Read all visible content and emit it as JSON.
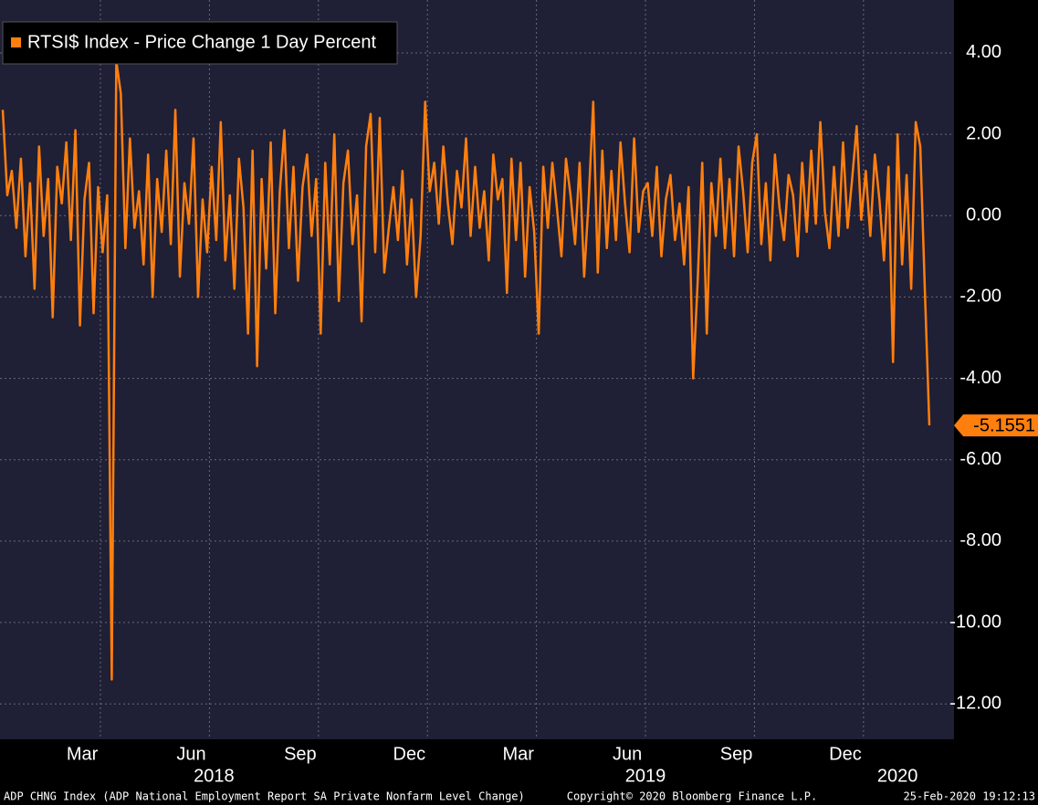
{
  "chart_data": {
    "type": "line",
    "series": [
      {
        "name": "RTSI$ Index - Price Change 1 Day Percent",
        "color": "#ff7f0e",
        "values": [
          2.6,
          0.5,
          1.1,
          -0.3,
          1.4,
          -1.0,
          0.8,
          -1.8,
          1.7,
          -0.5,
          0.9,
          -2.5,
          1.2,
          0.3,
          1.8,
          -0.6,
          2.1,
          -2.7,
          0.4,
          1.3,
          -2.4,
          0.7,
          -0.9,
          0.5,
          -11.4,
          3.8,
          3.0,
          -0.8,
          1.9,
          -0.3,
          0.6,
          -1.2,
          1.5,
          -2.0,
          0.9,
          -0.4,
          1.6,
          -0.7,
          2.6,
          -1.5,
          0.8,
          -0.2,
          1.9,
          -2.0,
          0.4,
          -0.9,
          1.2,
          -0.6,
          2.3,
          -1.1,
          0.5,
          -1.8,
          1.4,
          0.2,
          -2.9,
          1.6,
          -3.7,
          0.9,
          -1.3,
          1.8,
          -2.4,
          0.6,
          2.1,
          -0.8,
          1.2,
          -1.6,
          0.7,
          1.5,
          -0.5,
          0.9,
          -2.9,
          1.3,
          -1.2,
          2.0,
          -2.1,
          0.8,
          1.6,
          -0.7,
          0.5,
          -2.6,
          1.7,
          2.5,
          -0.9,
          2.4,
          -1.4,
          -0.3,
          0.7,
          -0.6,
          1.1,
          -1.2,
          0.4,
          -2.0,
          -0.5,
          2.8,
          0.6,
          1.3,
          -0.2,
          1.7,
          0.3,
          -0.7,
          1.1,
          0.2,
          1.9,
          -0.5,
          1.2,
          -0.3,
          0.6,
          -1.1,
          1.5,
          0.4,
          0.9,
          -1.9,
          1.4,
          -0.6,
          1.3,
          -1.5,
          0.7,
          -0.4,
          -2.9,
          1.2,
          -0.3,
          1.3,
          0.2,
          -1.0,
          1.4,
          0.5,
          -0.7,
          1.3,
          -1.5,
          0.4,
          2.8,
          -1.4,
          1.6,
          -0.8,
          1.1,
          -0.6,
          1.8,
          0.3,
          -0.9,
          1.9,
          -0.4,
          0.6,
          0.8,
          -0.5,
          1.2,
          -1.0,
          0.4,
          1.0,
          -0.6,
          0.3,
          -1.2,
          0.7,
          -4.0,
          -1.6,
          1.3,
          -2.9,
          0.8,
          -0.5,
          1.4,
          -0.8,
          0.9,
          -1.0,
          1.7,
          0.6,
          -0.9,
          1.3,
          2.0,
          -0.7,
          0.8,
          -1.1,
          1.5,
          0.2,
          -0.6,
          1.0,
          0.5,
          -1.0,
          1.3,
          -0.4,
          1.6,
          -0.2,
          2.3,
          0.1,
          -0.8,
          1.2,
          -0.5,
          1.8,
          -0.3,
          0.9,
          2.2,
          -0.1,
          1.1,
          -0.5,
          1.5,
          0.4,
          -1.1,
          1.2,
          -3.6,
          2.0,
          -1.2,
          1.0,
          -1.8,
          2.3,
          1.7,
          -1.8,
          -5.1551
        ]
      }
    ],
    "x": [
      "2018-01",
      "2018-01",
      "2018-01",
      "2018-01",
      "2018-01",
      "2018-01",
      "2018-02",
      "2018-02",
      "2018-02",
      "2018-02",
      "2018-02",
      "2018-02",
      "2018-02",
      "2018-02",
      "2018-03",
      "2018-03",
      "2018-03",
      "2018-03",
      "2018-03",
      "2018-03",
      "2018-03",
      "2018-03",
      "2018-04",
      "2018-04",
      "2018-04",
      "2018-04",
      "2018-04",
      "2018-04",
      "2018-04",
      "2018-04",
      "2018-05",
      "2018-05",
      "2018-05",
      "2018-05",
      "2018-05",
      "2018-05",
      "2018-05",
      "2018-05",
      "2018-06",
      "2018-06",
      "2018-06",
      "2018-06",
      "2018-06",
      "2018-06",
      "2018-06",
      "2018-06",
      "2018-07",
      "2018-07",
      "2018-07",
      "2018-07",
      "2018-07",
      "2018-07",
      "2018-07",
      "2018-07",
      "2018-08",
      "2018-08",
      "2018-08",
      "2018-08",
      "2018-08",
      "2018-08",
      "2018-08",
      "2018-08",
      "2018-09",
      "2018-09",
      "2018-09",
      "2018-09",
      "2018-09",
      "2018-09",
      "2018-09",
      "2018-09",
      "2018-10",
      "2018-10",
      "2018-10",
      "2018-10",
      "2018-10",
      "2018-10",
      "2018-10",
      "2018-10",
      "2018-11",
      "2018-11",
      "2018-11",
      "2018-11",
      "2018-11",
      "2018-11",
      "2018-11",
      "2018-11",
      "2018-12",
      "2018-12",
      "2018-12",
      "2018-12",
      "2018-12",
      "2018-12",
      "2018-12",
      "2018-12",
      "2019-01",
      "2019-01",
      "2019-01",
      "2019-01",
      "2019-01",
      "2019-01",
      "2019-01",
      "2019-01",
      "2019-02",
      "2019-02",
      "2019-02",
      "2019-02",
      "2019-02",
      "2019-02",
      "2019-02",
      "2019-02",
      "2019-03",
      "2019-03",
      "2019-03",
      "2019-03",
      "2019-03",
      "2019-03",
      "2019-03",
      "2019-03",
      "2019-04",
      "2019-04",
      "2019-04",
      "2019-04",
      "2019-04",
      "2019-04",
      "2019-04",
      "2019-04",
      "2019-05",
      "2019-05",
      "2019-05",
      "2019-05",
      "2019-05",
      "2019-05",
      "2019-05",
      "2019-05",
      "2019-06",
      "2019-06",
      "2019-06",
      "2019-06",
      "2019-06",
      "2019-06",
      "2019-06",
      "2019-06",
      "2019-07",
      "2019-07",
      "2019-07",
      "2019-07",
      "2019-07",
      "2019-07",
      "2019-07",
      "2019-07",
      "2019-08",
      "2019-08",
      "2019-08",
      "2019-08",
      "2019-08",
      "2019-08",
      "2019-08",
      "2019-08",
      "2019-09",
      "2019-09",
      "2019-09",
      "2019-09",
      "2019-09",
      "2019-09",
      "2019-09",
      "2019-09",
      "2019-10",
      "2019-10",
      "2019-10",
      "2019-10",
      "2019-10",
      "2019-10",
      "2019-10",
      "2019-10",
      "2019-11",
      "2019-11",
      "2019-11",
      "2019-11",
      "2019-11",
      "2019-11",
      "2019-11",
      "2019-11",
      "2019-12",
      "2019-12",
      "2019-12",
      "2019-12",
      "2019-12",
      "2019-12",
      "2019-12",
      "2019-12",
      "2020-01",
      "2020-01",
      "2020-01",
      "2020-01",
      "2020-01",
      "2020-01",
      "2020-01",
      "2020-01",
      "2020-02",
      "2020-02",
      "2020-02",
      "2020-02",
      "2020-02",
      "2020-02",
      "2020-02"
    ],
    "xticks": [
      {
        "value": "2018-03",
        "label": "Mar"
      },
      {
        "value": "2018-06",
        "label": "Jun"
      },
      {
        "value": "2018-09",
        "label": "Sep"
      },
      {
        "value": "2018-12",
        "label": "Dec"
      },
      {
        "value": "2019-03",
        "label": "Mar"
      },
      {
        "value": "2019-06",
        "label": "Jun"
      },
      {
        "value": "2019-09",
        "label": "Sep"
      },
      {
        "value": "2019-12",
        "label": "Dec"
      }
    ],
    "year_labels": [
      "2018",
      "2019",
      "2020"
    ],
    "ylim": [
      -12.87,
      5.3
    ],
    "yticks": [
      {
        "value": 4,
        "label": "4.00"
      },
      {
        "value": 2,
        "label": "2.00"
      },
      {
        "value": 0,
        "label": "0.00"
      },
      {
        "value": -2,
        "label": "-2.00"
      },
      {
        "value": -4,
        "label": "-4.00"
      },
      {
        "value": -6,
        "label": "-6.00"
      },
      {
        "value": -8,
        "label": "-8.00"
      },
      {
        "value": -10,
        "label": "-10.00"
      },
      {
        "value": -12,
        "label": "-12.00"
      }
    ],
    "grid": true,
    "legend": "top-left",
    "source_note": "ADP CHNG Index (ADP National Employment Report SA Private Nonfarm Level Change)",
    "copyright": "Copyright© 2020 Bloomberg Finance L.P.",
    "timestamp": "25-Feb-2020 19:12:13"
  }
}
